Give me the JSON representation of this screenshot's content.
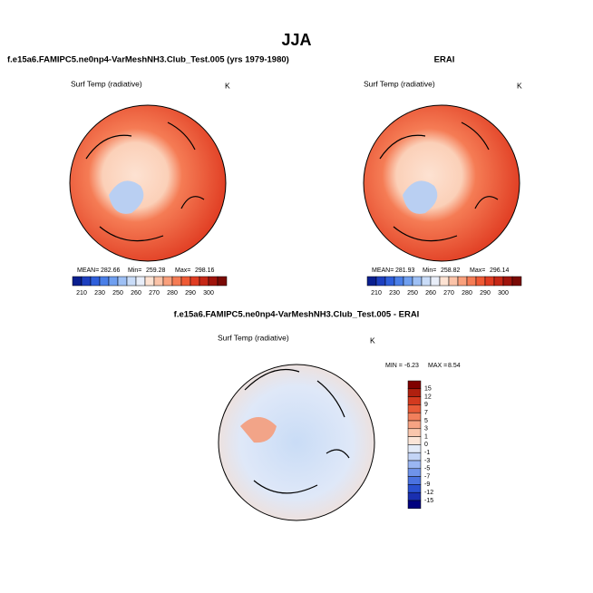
{
  "title": "JJA",
  "panels": [
    {
      "title": "f.e15a6.FAMIPC5.ne0np4-VarMeshNH3.Club_Test.005 (yrs 1979-1980)",
      "variable": "Surf Temp (radiative)",
      "units": "K",
      "stats": {
        "mean_label": "MEAN=",
        "mean": 282.66,
        "min_label": "Min=",
        "min": 259.28,
        "max_label": "Max=",
        "max": 298.16
      },
      "colorbar": {
        "labels": [
          210,
          230,
          250,
          260,
          270,
          280,
          290,
          300
        ],
        "colors": [
          "#0a1f8f",
          "#1d3fbf",
          "#2f5fdb",
          "#4a7fe8",
          "#6f9ff0",
          "#9ec0f5",
          "#c9dcf8",
          "#e8eef9",
          "#fde2d2",
          "#fbc3a8",
          "#f9a07c",
          "#f57c55",
          "#ef5a35",
          "#e03c22",
          "#c52716",
          "#a0140c",
          "#7a0a05"
        ]
      }
    },
    {
      "title": "ERAI",
      "variable": "Surf Temp (radiative)",
      "units": "K",
      "stats": {
        "mean_label": "MEAN=",
        "mean": 281.93,
        "min_label": "Min=",
        "min": 258.82,
        "max_label": "Max=",
        "max": 296.14
      },
      "colorbar": {
        "labels": [
          210,
          230,
          250,
          260,
          270,
          280,
          290,
          300
        ],
        "colors": [
          "#0a1f8f",
          "#1d3fbf",
          "#2f5fdb",
          "#4a7fe8",
          "#6f9ff0",
          "#9ec0f5",
          "#c9dcf8",
          "#e8eef9",
          "#fde2d2",
          "#fbc3a8",
          "#f9a07c",
          "#f57c55",
          "#ef5a35",
          "#e03c22",
          "#c52716",
          "#a0140c",
          "#7a0a05"
        ]
      }
    }
  ],
  "difference": {
    "title": "f.e15a6.FAMIPC5.ne0np4-VarMeshNH3.Club_Test.005 - ERAI",
    "variable": "Surf Temp (radiative)",
    "units": "K",
    "stats": {
      "min_label": "MIN =",
      "min": -6.23,
      "max_label": "MAX =",
      "max": 8.54
    },
    "colorbar": {
      "labels": [
        15,
        12,
        9,
        7,
        5,
        3,
        1,
        0,
        -1,
        -3,
        -5,
        -7,
        -9,
        -12,
        -15
      ],
      "colors": [
        "#800000",
        "#b0200f",
        "#d33a1f",
        "#e85b38",
        "#f17f5b",
        "#f6a383",
        "#f9c6ad",
        "#fbe5d8",
        "#e3ebf9",
        "#c3d4f6",
        "#9ab6f2",
        "#6f93ea",
        "#4a72e0",
        "#2a50d0",
        "#1a2fb0",
        "#00007f"
      ]
    }
  }
}
